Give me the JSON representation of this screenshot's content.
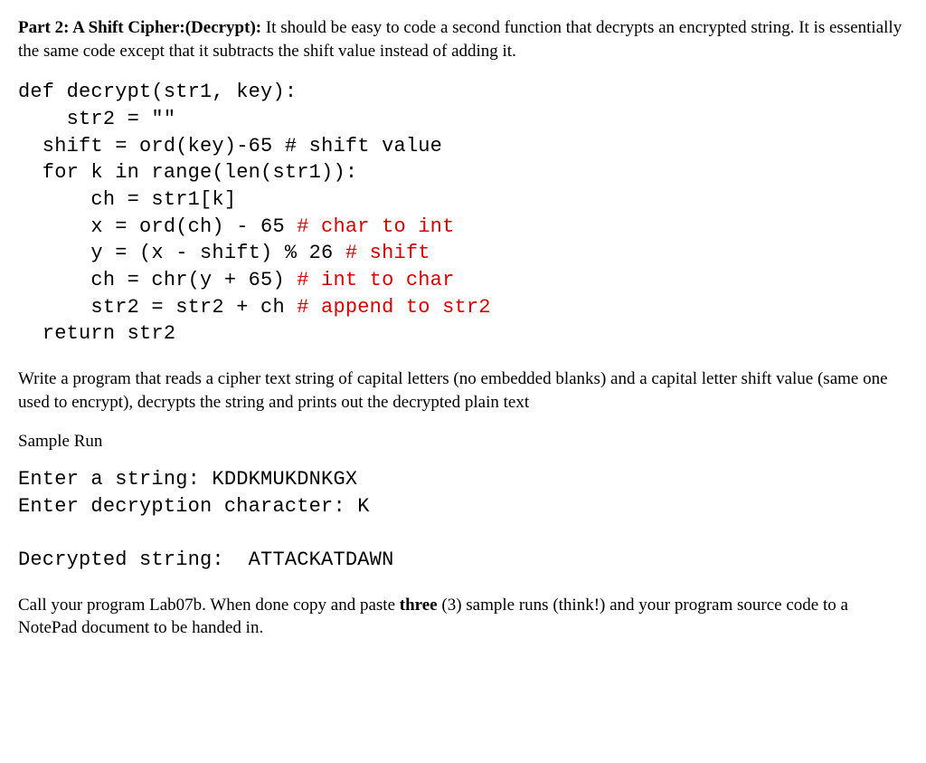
{
  "colors": {
    "text": "#000000",
    "code_highlight": "#d40000",
    "background": "#ffffff"
  },
  "typography": {
    "body_font": "Georgia / Times New Roman, serif",
    "body_fontsize_pt": 14,
    "code_font": "Courier New, monospace",
    "code_fontsize_pt": 16
  },
  "intro": {
    "title": "Part 2: A Shift Cipher:(Decrypt):",
    "body": " It should be easy to code a second function that decrypts an encrypted string. It is essentially the same code except that it subtracts the shift value instead of adding it."
  },
  "code": {
    "l1": "def decrypt(str1, key):",
    "l2": "    str2 = \"\"",
    "l3_a": "  shift = ord(key)-65 ",
    "l3_b": "# shift value",
    "l4": "  for k in range(len(str1)):",
    "l5": "      ch = str1[k]",
    "l6_a": "      x = ord(ch) - 65 ",
    "l6_b": "# char to int",
    "l7_a": "      y = (x - shift) % 26 ",
    "l7_b": "# shift",
    "l8_a": "      ch = chr(y + 65) ",
    "l8_b": "# int to char",
    "l9_a": "      str2 = str2 + ch ",
    "l9_b": "# append to str2",
    "l10": "  return str2"
  },
  "instruction": "Write a program that reads a cipher text string of capital letters (no embedded blanks) and a capital letter shift value (same one used to encrypt), decrypts the string and prints out the decrypted plain text",
  "sample": {
    "title": "Sample Run",
    "l1": "Enter a string: KDDKMUKDNKGX",
    "l2": "Enter decryption character: K",
    "l3": "Decrypted string:  ATTACKATDAWN"
  },
  "closing": {
    "a": "Call your program Lab07b. When done copy and paste ",
    "b": "three",
    "c": " (3) sample runs (think!) and your program source code to a NotePad document to be handed in."
  }
}
